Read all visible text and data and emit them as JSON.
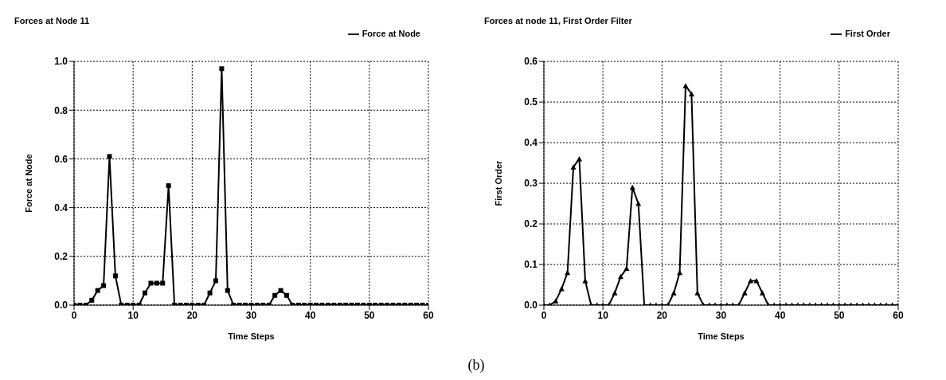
{
  "chart_data": [
    {
      "type": "line",
      "title": "Forces at Node 11",
      "xlabel": "Time Steps",
      "ylabel": "Force at Node",
      "x": [
        0,
        1,
        2,
        3,
        4,
        5,
        6,
        7,
        8,
        9,
        10,
        11,
        12,
        13,
        14,
        15,
        16,
        17,
        18,
        19,
        20,
        21,
        22,
        23,
        24,
        25,
        26,
        27,
        28,
        29,
        30,
        31,
        32,
        33,
        34,
        35,
        36,
        37,
        38,
        39,
        40,
        41,
        42,
        43,
        44,
        45,
        46,
        47,
        48,
        49,
        50,
        51,
        52,
        53,
        54,
        55,
        56,
        57,
        58,
        59,
        60
      ],
      "series": [
        {
          "name": "Force at Node",
          "color": "#000000",
          "marker": "square",
          "values": [
            0,
            0,
            0,
            0.02,
            0.06,
            0.08,
            0.61,
            0.12,
            0,
            0,
            0,
            0,
            0.05,
            0.09,
            0.09,
            0.09,
            0.49,
            0,
            0,
            0,
            0,
            0,
            0,
            0.05,
            0.1,
            0.97,
            0.06,
            0,
            0,
            0,
            0,
            0,
            0,
            0,
            0.04,
            0.06,
            0.04,
            0,
            0,
            0,
            0,
            0,
            0,
            0,
            0,
            0,
            0,
            0,
            0,
            0,
            0,
            0,
            0,
            0,
            0,
            0,
            0,
            0,
            0,
            0,
            0
          ]
        }
      ],
      "xlim": [
        0,
        60
      ],
      "xticks": [
        0,
        10,
        20,
        30,
        40,
        50,
        60
      ],
      "ylim": [
        0,
        1
      ],
      "yticks": [
        {
          "value": 0,
          "label": "0.0"
        },
        {
          "value": 0.2,
          "label": "0.2"
        },
        {
          "value": 0.4,
          "label": "0.4"
        },
        {
          "value": 0.6,
          "label": "0.6"
        },
        {
          "value": 0.8,
          "label": "0.8"
        },
        {
          "value": 1,
          "label": "1.0"
        }
      ],
      "grid": true,
      "legend": "top right",
      "annotations": [
        "(b)"
      ]
    },
    {
      "type": "line",
      "title": "Forces at node 11, First Order Filter",
      "xlabel": "Time Steps",
      "ylabel": "First Order",
      "x": [
        0,
        1,
        2,
        3,
        4,
        5,
        6,
        7,
        8,
        9,
        10,
        11,
        12,
        13,
        14,
        15,
        16,
        17,
        18,
        19,
        20,
        21,
        22,
        23,
        24,
        25,
        26,
        27,
        28,
        29,
        30,
        31,
        32,
        33,
        34,
        35,
        36,
        37,
        38,
        39,
        40,
        41,
        42,
        43,
        44,
        45,
        46,
        47,
        48,
        49,
        50,
        51,
        52,
        53,
        54,
        55,
        56,
        57,
        58,
        59,
        60
      ],
      "series": [
        {
          "name": "First Order",
          "color": "#000000",
          "marker": "triangle",
          "values": [
            0,
            0,
            0.01,
            0.04,
            0.08,
            0.34,
            0.36,
            0.06,
            0,
            0,
            0,
            0,
            0.03,
            0.07,
            0.09,
            0.29,
            0.25,
            0,
            0,
            0,
            0,
            0,
            0.03,
            0.08,
            0.54,
            0.52,
            0.03,
            0,
            0,
            0,
            0,
            0,
            0,
            0,
            0.03,
            0.06,
            0.06,
            0.03,
            0,
            0,
            0,
            0,
            0,
            0,
            0,
            0,
            0,
            0,
            0,
            0,
            0,
            0,
            0,
            0,
            0,
            0,
            0,
            0,
            0,
            0,
            0
          ]
        }
      ],
      "xlim": [
        0,
        60
      ],
      "xticks": [
        0,
        10,
        20,
        30,
        40,
        50,
        60
      ],
      "ylim": [
        0,
        0.6
      ],
      "yticks": [
        {
          "value": 0,
          "label": "0.0"
        },
        {
          "value": 0.1,
          "label": "0.1"
        },
        {
          "value": 0.2,
          "label": "0.2"
        },
        {
          "value": 0.3,
          "label": "0.3"
        },
        {
          "value": 0.4,
          "label": "0.4"
        },
        {
          "value": 0.5,
          "label": "0.5"
        },
        {
          "value": 0.6,
          "label": "0.6"
        }
      ],
      "grid": true,
      "legend": "top right"
    }
  ]
}
